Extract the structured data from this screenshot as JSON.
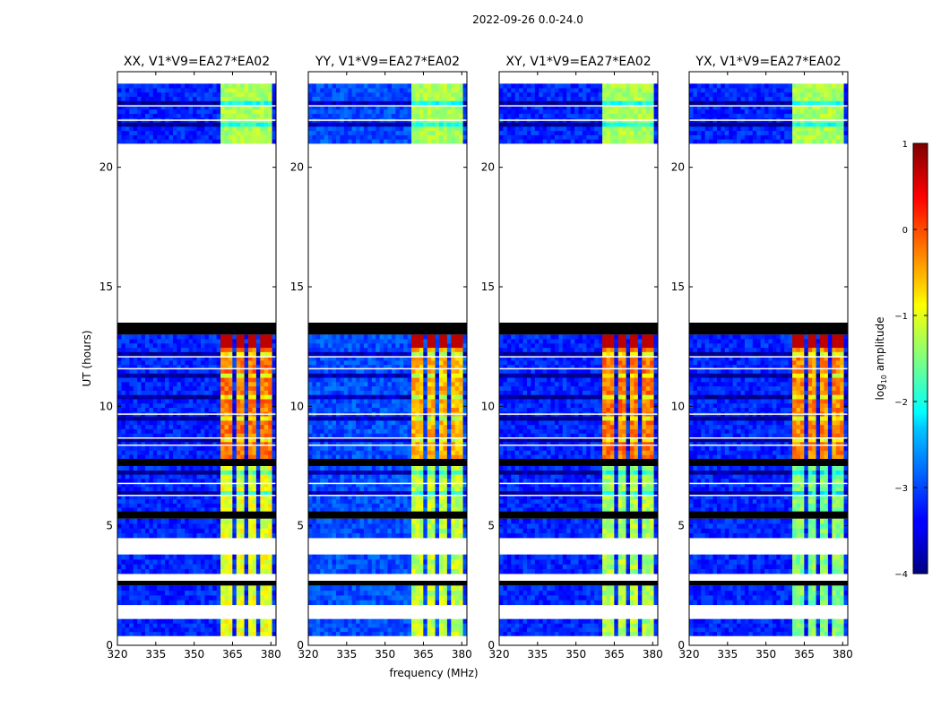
{
  "chart_data": {
    "type": "heatmap",
    "suptitle": "2022-09-26 0.0-24.0",
    "xlabel": "frequency (MHz)",
    "ylabel": "UT (hours)",
    "xlim": [
      320,
      382
    ],
    "ylim": [
      0,
      24
    ],
    "xticks": [
      320,
      335,
      350,
      365,
      380
    ],
    "xtick_labels": [
      "320",
      "335",
      "350",
      "365",
      "380"
    ],
    "yticks": [
      0,
      5,
      10,
      15,
      20
    ],
    "ytick_labels": [
      "0",
      "5",
      "10",
      "15",
      "20"
    ],
    "colorbar": {
      "label": "log₁₀ amplitude",
      "label_prefix": "log",
      "label_sub": "10",
      "label_suffix": " amplitude",
      "range": [
        -4,
        1
      ],
      "ticks": [
        -4,
        -3,
        -2,
        -1,
        0,
        1
      ],
      "tick_labels": [
        "−4",
        "−3",
        "−2",
        "−1",
        "0",
        "1"
      ],
      "colormap": "jet"
    },
    "panels": [
      {
        "title": "XX, V1*V9=EA27*EA02",
        "band_level": [
          -1.0,
          -0.2
        ],
        "band_mhz": [
          361,
          381
        ],
        "bg_level": -3.2
      },
      {
        "title": "YY, V1*V9=EA27*EA02",
        "band_level": [
          -1.2,
          -0.5
        ],
        "band_mhz": [
          361,
          380
        ],
        "bg_level": -3.0
      },
      {
        "title": "XY, V1*V9=EA27*EA02",
        "band_level": [
          -1.3,
          -0.2
        ],
        "band_mhz": [
          361,
          380
        ],
        "bg_level": -3.2
      },
      {
        "title": "YX, V1*V9=EA27*EA02",
        "band_level": [
          -1.5,
          -0.3
        ],
        "band_mhz": [
          361,
          380
        ],
        "bg_level": -3.2
      }
    ],
    "bright_band_hours": [
      7.8,
      13.0
    ],
    "no_data_hours": [
      [
        13.5,
        21.0
      ]
    ]
  }
}
